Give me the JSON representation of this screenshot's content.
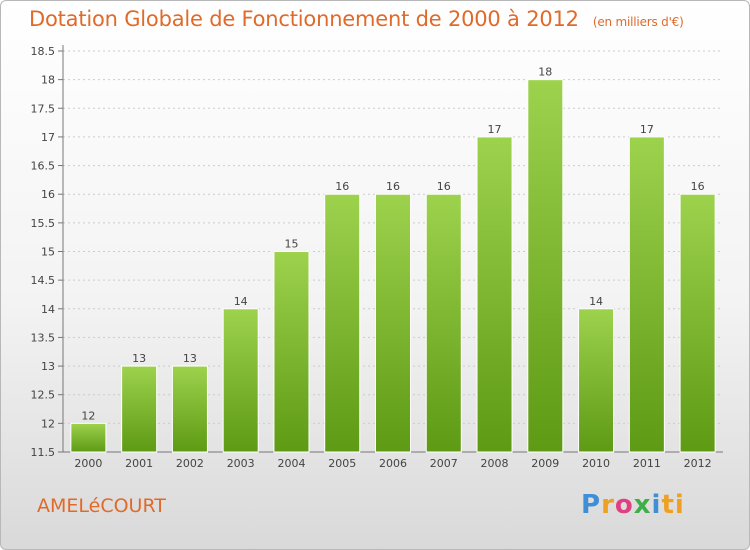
{
  "title": "Dotation Globale de Fonctionnement de 2000 à 2012",
  "unit_note": "(en milliers d'€)",
  "town": "AMELéCOURT",
  "logo": {
    "letters": [
      "P",
      "r",
      "o",
      "x",
      "i",
      "ti"
    ]
  },
  "colors": {
    "title": "#e06a2a",
    "bar_top": "#9dd24d",
    "bar_bottom": "#5e9a14",
    "grid": "#cccccc"
  },
  "chart_data": {
    "type": "bar",
    "categories": [
      "2000",
      "2001",
      "2002",
      "2003",
      "2004",
      "2005",
      "2006",
      "2007",
      "2008",
      "2009",
      "2010",
      "2011",
      "2012"
    ],
    "values": [
      12,
      13,
      13,
      14,
      15,
      16,
      16,
      16,
      17,
      18,
      14,
      17,
      16
    ],
    "data_labels": [
      "12",
      "13",
      "13",
      "14",
      "15",
      "16",
      "16",
      "16",
      "17",
      "18",
      "14",
      "17",
      "16"
    ],
    "ylim": [
      11.5,
      18.5
    ],
    "yticks": [
      "11.5",
      "12",
      "12.5",
      "13",
      "13.5",
      "14",
      "14.5",
      "15",
      "15.5",
      "16",
      "16.5",
      "17",
      "17.5",
      "18",
      "18.5"
    ],
    "grid": true,
    "title": "Dotation Globale de Fonctionnement de 2000 à 2012",
    "xlabel": "",
    "ylabel": ""
  }
}
